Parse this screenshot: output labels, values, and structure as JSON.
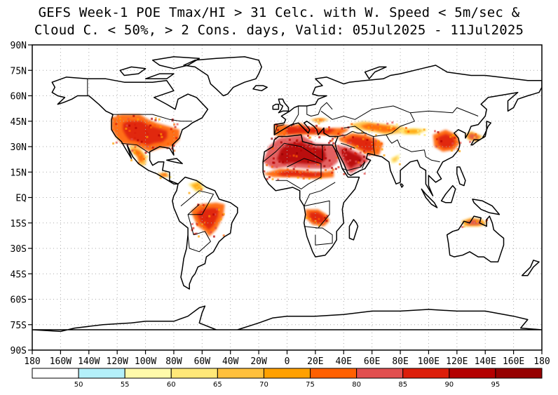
{
  "title": {
    "line1": "GEFS Week-1 POE Tmax/HI > 31 Celc. with W. Speed < 5m/sec &",
    "line2": "Cloud C. < 50%, > 2 Cons. days, Valid: 05Jul2025 - 11Jul2025"
  },
  "axes": {
    "lat_labels": [
      "90N",
      "75N",
      "60N",
      "45N",
      "30N",
      "15N",
      "EQ",
      "15S",
      "30S",
      "45S",
      "60S",
      "75S",
      "90S"
    ],
    "lon_labels": [
      "180",
      "160W",
      "140W",
      "120W",
      "100W",
      "80W",
      "60W",
      "40W",
      "20W",
      "0",
      "20E",
      "40E",
      "60E",
      "80E",
      "100E",
      "120E",
      "140E",
      "160E",
      "180"
    ],
    "gridlines": true
  },
  "colorbar": {
    "colors": [
      "#ffffff",
      "#b4f0fa",
      "#fffaaa",
      "#ffe878",
      "#ffc03c",
      "#ffa000",
      "#ff6000",
      "#e14f4f",
      "#dc1e0a",
      "#b40000",
      "#960000"
    ],
    "labels": [
      "50",
      "55",
      "60",
      "65",
      "70",
      "75",
      "80",
      "85",
      "90",
      "95"
    ]
  },
  "map": {
    "land_fill": "#ffffff",
    "coast_color": "#000000",
    "hot_regions": [
      {
        "name": "Western & Central USA",
        "level": 8
      },
      {
        "name": "Mexico",
        "level": 7
      },
      {
        "name": "Northern Africa / Sahara",
        "level": 9
      },
      {
        "name": "Arabian Peninsula",
        "level": 9
      },
      {
        "name": "Middle East / Iran",
        "level": 8
      },
      {
        "name": "Central Asia",
        "level": 7
      },
      {
        "name": "Eastern China",
        "level": 8
      },
      {
        "name": "Southern Europe",
        "level": 8
      },
      {
        "name": "Central Brazil / Bolivia",
        "level": 8
      },
      {
        "name": "Angola / Zambia",
        "level": 8
      },
      {
        "name": "Northern Australia",
        "level": 7
      }
    ]
  }
}
